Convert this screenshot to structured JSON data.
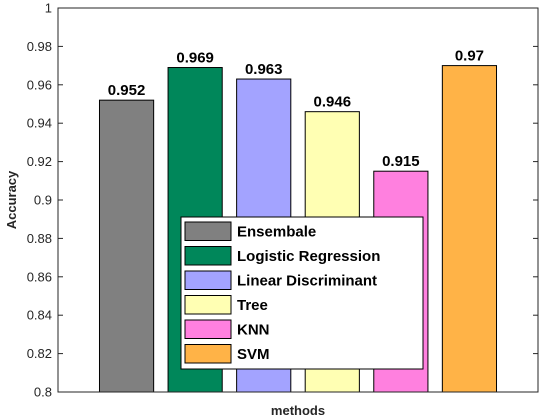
{
  "chart_data": {
    "type": "bar",
    "categories": [
      "Ensembale",
      "Logistic Regression",
      "Linear Discriminant",
      "Tree",
      "KNN",
      "SVM"
    ],
    "values": [
      0.952,
      0.969,
      0.963,
      0.946,
      0.915,
      0.97
    ],
    "data_labels": [
      "0.952",
      "0.969",
      "0.963",
      "0.946",
      "0.915",
      "0.97"
    ],
    "colors": [
      "#808080",
      "#00875a",
      "#a3a3ff",
      "#ffffb3",
      "#ff80df",
      "#ffb347"
    ],
    "xlabel": "methods",
    "ylabel": "Accuracy",
    "ylim": [
      0.8,
      1.0
    ],
    "yticks": [
      0.8,
      0.82,
      0.84,
      0.86,
      0.88,
      0.9,
      0.92,
      0.94,
      0.96,
      0.98,
      1
    ],
    "ytick_labels": [
      "0.8",
      "0.82",
      "0.84",
      "0.86",
      "0.88",
      "0.9",
      "0.92",
      "0.94",
      "0.96",
      "0.98",
      "1"
    ],
    "legend": {
      "position": "lower-center",
      "entries": [
        "Ensembale",
        "Logistic Regression",
        "Linear Discriminant",
        "Tree",
        "KNN",
        "SVM"
      ]
    },
    "grid": false
  }
}
